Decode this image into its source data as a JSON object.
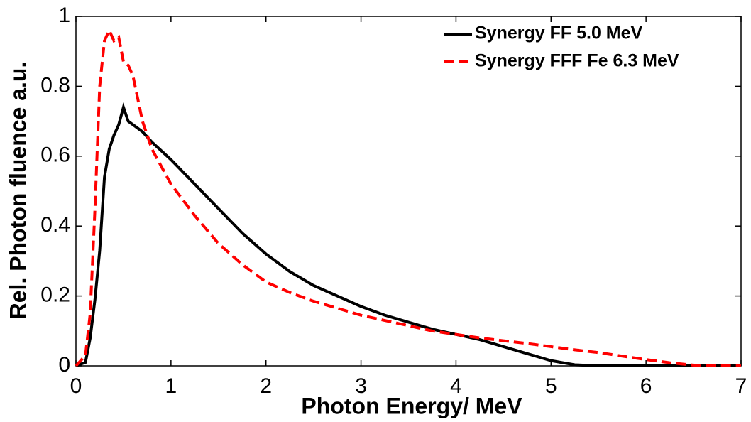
{
  "chart_data": {
    "type": "line",
    "xlabel": "Photon Energy/ MeV",
    "ylabel": "Rel. Photon fluence a.u.",
    "x": [
      0,
      0.1,
      0.15,
      0.2,
      0.25,
      0.3,
      0.35,
      0.4,
      0.45,
      0.5,
      0.55,
      0.6,
      0.7,
      0.8,
      1.0,
      1.25,
      1.5,
      1.75,
      2.0,
      2.25,
      2.5,
      2.75,
      3.0,
      3.25,
      3.5,
      3.75,
      4.0,
      4.25,
      4.5,
      4.75,
      5.0,
      5.25,
      5.5,
      5.75,
      6.0,
      6.25,
      6.5,
      7.0
    ],
    "series": [
      {
        "name": "Synergy FF 5.0 MeV",
        "color": "#000000",
        "line_style": "solid",
        "values": [
          0,
          0.01,
          0.08,
          0.19,
          0.33,
          0.54,
          0.62,
          0.66,
          0.69,
          0.74,
          0.7,
          0.69,
          0.67,
          0.64,
          0.59,
          0.52,
          0.45,
          0.38,
          0.32,
          0.27,
          0.23,
          0.2,
          0.17,
          0.145,
          0.125,
          0.105,
          0.09,
          0.075,
          0.055,
          0.035,
          0.015,
          0.003,
          0,
          0,
          0,
          0,
          0,
          0
        ]
      },
      {
        "name": "Synergy FFF Fe 6.3 MeV",
        "color": "#ff0000",
        "line_style": "dashed",
        "values": [
          0,
          0.03,
          0.15,
          0.45,
          0.8,
          0.93,
          0.96,
          0.93,
          0.94,
          0.87,
          0.86,
          0.83,
          0.7,
          0.62,
          0.52,
          0.43,
          0.35,
          0.29,
          0.24,
          0.21,
          0.185,
          0.165,
          0.145,
          0.13,
          0.115,
          0.1,
          0.09,
          0.08,
          0.072,
          0.064,
          0.055,
          0.046,
          0.038,
          0.028,
          0.018,
          0.009,
          0.002,
          0
        ]
      }
    ],
    "xlim": [
      0,
      7
    ],
    "xticks": [
      0,
      1,
      2,
      3,
      4,
      5,
      6,
      7
    ],
    "ylim": [
      0,
      1
    ],
    "yticks": [
      0,
      0.2,
      0.4,
      0.6,
      0.8,
      1
    ],
    "legend": "upper right"
  }
}
